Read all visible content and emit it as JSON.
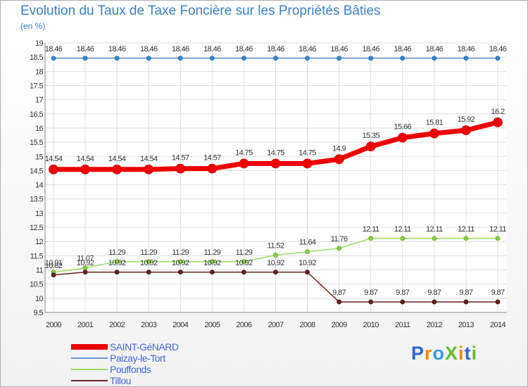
{
  "chart_data": {
    "type": "line",
    "title": "Evolution du Taux de Taxe Foncière sur les Propriétés Bâties",
    "ylabel": "(en %)",
    "xlabel": "",
    "categories": [
      "2000",
      "2001",
      "2002",
      "2003",
      "2004",
      "2005",
      "2006",
      "2007",
      "2008",
      "2009",
      "2010",
      "2011",
      "2012",
      "2013",
      "2014"
    ],
    "ylim": [
      9.5,
      19
    ],
    "yticks": [
      "9.5",
      "10",
      "10.5",
      "11",
      "11.5",
      "12",
      "12.5",
      "13",
      "13.5",
      "14",
      "14.5",
      "15",
      "15.5",
      "16",
      "16.5",
      "17",
      "17.5",
      "18",
      "18.5",
      "19"
    ],
    "grid": true,
    "legend_position": "bottom-left",
    "series": [
      {
        "name": "SAINT-GéNARD",
        "color": "#ee0000",
        "values": [
          14.54,
          14.54,
          14.54,
          14.54,
          14.57,
          14.57,
          14.75,
          14.75,
          14.75,
          14.9,
          15.35,
          15.66,
          15.81,
          15.92,
          16.2
        ],
        "labels": [
          "14.54",
          "14.54",
          "14.54",
          "14.54",
          "14.57",
          "14.57",
          "14.75",
          "14.75",
          "14.75",
          "14.9",
          "15.35",
          "15.66",
          "15.81",
          "15.92",
          "16.2"
        ]
      },
      {
        "name": "Paizay-le-Tort",
        "color": "#6699cc",
        "values": [
          18.46,
          18.46,
          18.46,
          18.46,
          18.46,
          18.46,
          18.46,
          18.46,
          18.46,
          18.46,
          18.46,
          18.46,
          18.46,
          18.46,
          18.46
        ],
        "labels": [
          "18.46",
          "18.46",
          "18.46",
          "18.46",
          "18.46",
          "18.46",
          "18.46",
          "18.46",
          "18.46",
          "18.46",
          "18.46",
          "18.46",
          "18.46",
          "18.46",
          "18.46"
        ]
      },
      {
        "name": "Pouffonds",
        "color": "#99dd66",
        "values": [
          10.91,
          11.07,
          11.29,
          11.29,
          11.29,
          11.29,
          11.29,
          11.52,
          11.64,
          11.76,
          12.11,
          12.11,
          12.11,
          12.11,
          12.11
        ],
        "labels": [
          "10.91",
          "11.07",
          "11.29",
          "11.29",
          "11.29",
          "11.29",
          "11.29",
          "11.52",
          "11.64",
          "11.76",
          "12.11",
          "12.11",
          "12.11",
          "12.11",
          "12.11"
        ]
      },
      {
        "name": "Tillou",
        "color": "#662222",
        "values": [
          10.82,
          10.92,
          10.92,
          10.92,
          10.92,
          10.92,
          10.92,
          10.92,
          10.92,
          9.87,
          9.87,
          9.87,
          9.87,
          9.87,
          9.87
        ],
        "labels": [
          "10.82",
          "10.92",
          "10.92",
          "10.92",
          "10.92",
          "10.92",
          "10.92",
          "10.92",
          "10.92",
          "9.87",
          "9.87",
          "9.87",
          "9.87",
          "9.87",
          "9.87"
        ]
      }
    ]
  },
  "brand": {
    "name": "ProXiti",
    "letters": [
      "P",
      "r",
      "o",
      "X",
      "i",
      "t",
      "i"
    ],
    "colors": [
      "#3366cc",
      "#ee8800",
      "#3399ee",
      "#66bb33",
      "#ee8800",
      "#3366cc",
      "#66bb33"
    ]
  }
}
